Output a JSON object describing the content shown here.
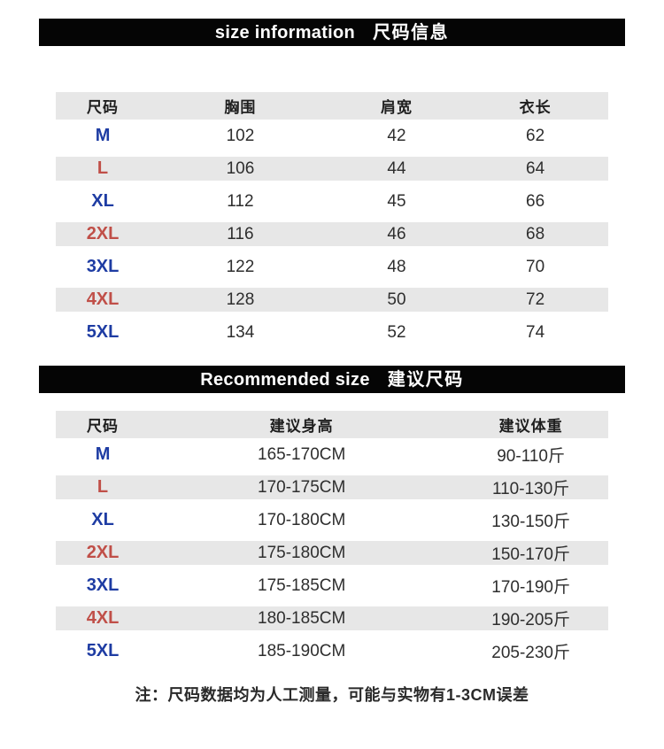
{
  "colors": {
    "bar_background": "#050505",
    "bar_text": "#ffffff",
    "stripe_gray": "#e7e7e7",
    "header_text": "#1f1f1f",
    "value_text": "#2e2e2e",
    "size_blue": "#1e3ca3",
    "size_red": "#c04f48"
  },
  "chart_data": [
    {
      "type": "table",
      "title_en": "size information",
      "title_zh": "尺码信息",
      "columns": [
        "尺码",
        "胸围",
        "肩宽",
        "衣长"
      ],
      "rows": [
        [
          "M",
          "102",
          "42",
          "62"
        ],
        [
          "L",
          "106",
          "44",
          "64"
        ],
        [
          "XL",
          "112",
          "45",
          "66"
        ],
        [
          "2XL",
          "116",
          "46",
          "68"
        ],
        [
          "3XL",
          "122",
          "48",
          "70"
        ],
        [
          "4XL",
          "128",
          "50",
          "72"
        ],
        [
          "5XL",
          "134",
          "52",
          "74"
        ]
      ]
    },
    {
      "type": "table",
      "title_en": "Recommended size",
      "title_zh": "建议尺码",
      "columns": [
        "尺码",
        "建议身高",
        "建议体重"
      ],
      "rows": [
        [
          "M",
          "165-170CM",
          "90-110斤"
        ],
        [
          "L",
          "170-175CM",
          "110-130斤"
        ],
        [
          "XL",
          "170-180CM",
          "130-150斤"
        ],
        [
          "2XL",
          "175-180CM",
          "150-170斤"
        ],
        [
          "3XL",
          "175-185CM",
          "170-190斤"
        ],
        [
          "4XL",
          "180-185CM",
          "190-205斤"
        ],
        [
          "5XL",
          "185-190CM",
          "205-230斤"
        ]
      ]
    }
  ],
  "note": "注：尺码数据均为人工测量，可能与实物有1-3CM误差"
}
